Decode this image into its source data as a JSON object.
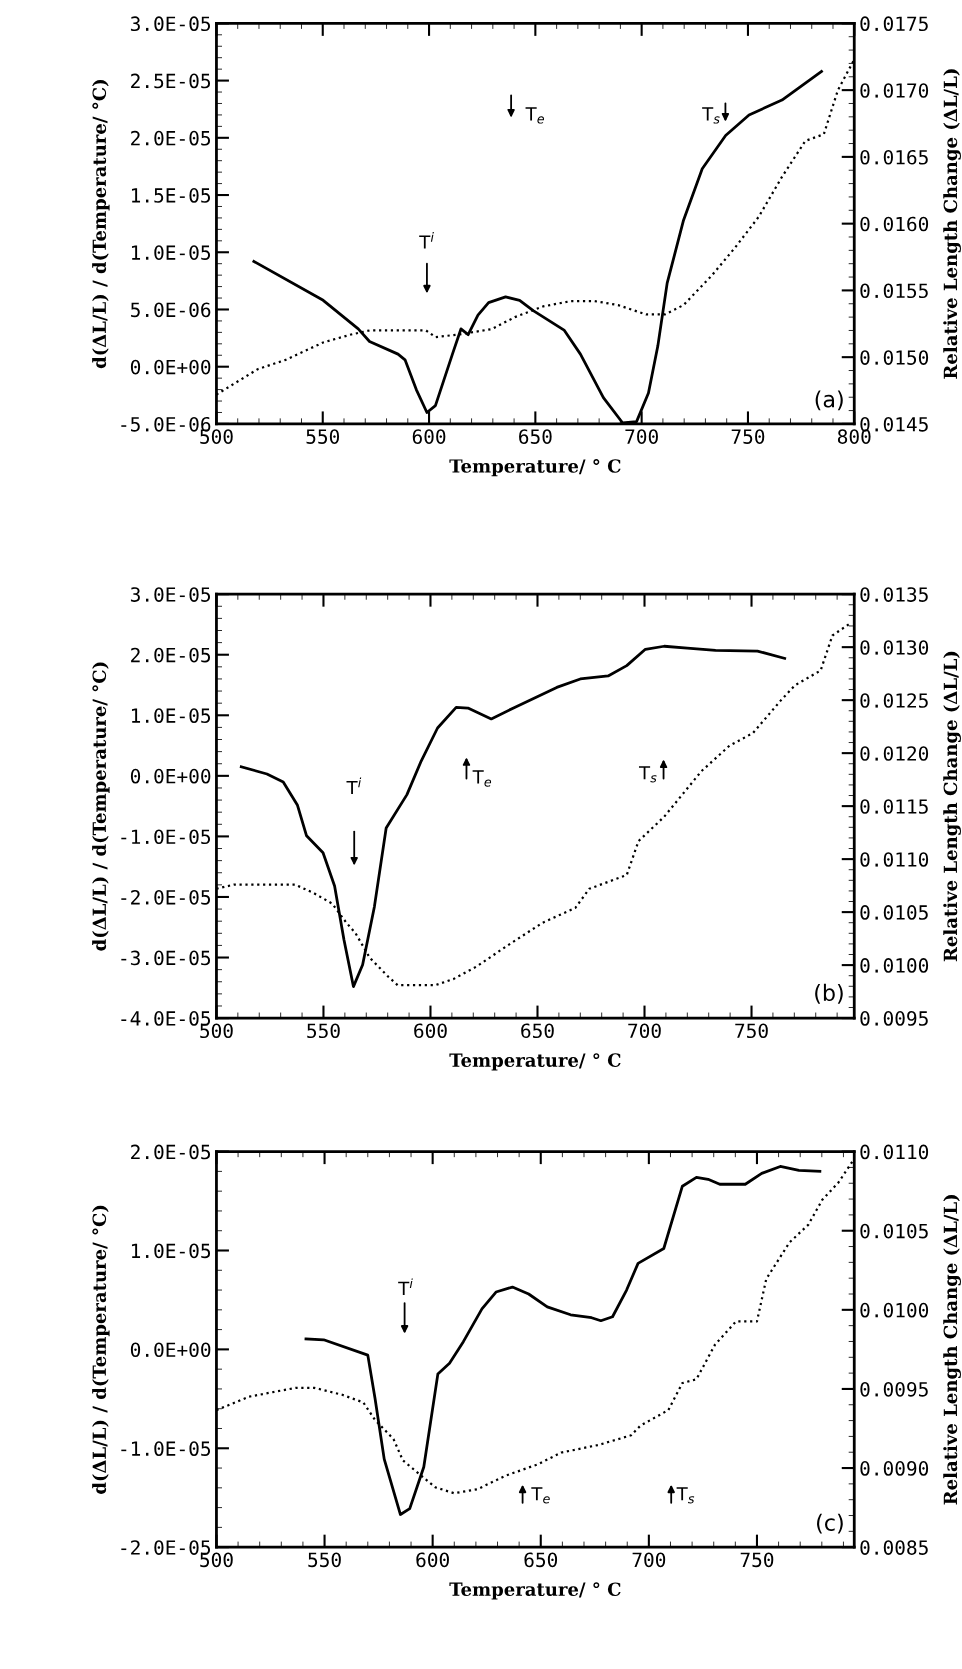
{
  "chart_data": [
    {
      "type": "line",
      "xlabel": "Temperature/ ° C",
      "ylabel": "d(ΔL/L) / d(Temperature/ °C)",
      "y2label": "Relative Length Change (ΔL/L)",
      "xlim": [
        500,
        800
      ],
      "xticks": [
        500,
        550,
        600,
        650,
        700,
        750,
        800
      ],
      "ylim": [
        -5e-06,
        3e-05
      ],
      "yticks": [
        {
          "value": -5e-06,
          "label": "-5.0E-06"
        },
        {
          "value": 0,
          "label": "0.0E+00"
        },
        {
          "value": 5e-06,
          "label": "5.0E-06"
        },
        {
          "value": 1e-05,
          "label": "1.0E-05"
        },
        {
          "value": 1.5e-05,
          "label": "1.5E-05"
        },
        {
          "value": 2e-05,
          "label": "2.0E-05"
        },
        {
          "value": 2.5e-05,
          "label": "2.5E-05"
        },
        {
          "value": 3e-05,
          "label": "3.0E-05"
        }
      ],
      "y2lim": [
        0.0145,
        0.0175
      ],
      "y2ticks": [
        {
          "value": 0.0145,
          "label": "0.0145"
        },
        {
          "value": 0.015,
          "label": "0.0150"
        },
        {
          "value": 0.0155,
          "label": "0.0155"
        },
        {
          "value": 0.016,
          "label": "0.0160"
        },
        {
          "value": 0.0165,
          "label": "0.0165"
        },
        {
          "value": 0.017,
          "label": "0.0170"
        },
        {
          "value": 0.0175,
          "label": "0.0175"
        }
      ],
      "series": [
        {
          "color": "#000000",
          "line_style": "solid",
          "x": [
            517.6,
            550.2,
            566.7,
            572,
            585.4,
            588.7,
            594,
            599,
            603,
            611,
            615,
            618.4,
            623,
            628,
            636,
            642.6,
            649,
            663.5,
            671.2,
            682,
            691,
            697.6,
            703.2,
            707.6,
            712,
            719.7,
            728.5,
            739.5,
            750.5,
            766,
            784.6
          ],
          "values": [
            9.2e-06,
            5.8e-06,
            3.3e-06,
            2.2e-06,
            1.1e-06,
            6e-07,
            -2e-06,
            -4e-06,
            -3.4e-06,
            1.1e-06,
            3.3e-06,
            2.8e-06,
            4.5e-06,
            5.6e-06,
            6.1e-06,
            5.8e-06,
            4.9e-06,
            3.2e-06,
            1.1e-06,
            -2.7e-06,
            -4.9e-06,
            -4.8e-06,
            -2.3e-06,
            1.8e-06,
            7.3e-06,
            1.28e-05,
            1.73e-05,
            2.02e-05,
            2.2e-05,
            2.33e-05,
            2.58e-05
          ]
        },
        {
          "color": "#000000",
          "line_style": "dotted",
          "axis": "y2",
          "x": [
            500,
            519.4,
            532.6,
            550.2,
            563.4,
            572,
            598.6,
            603,
            614,
            629.4,
            640.4,
            653.6,
            666.8,
            677.9,
            688.9,
            702.1,
            710.9,
            719.7,
            732.9,
            743.9,
            755,
            766,
            777,
            785.7,
            792.3,
            800
          ],
          "values": [
            0.01472,
            0.01491,
            0.01498,
            0.01511,
            0.01517,
            0.0152,
            0.0152,
            0.01515,
            0.01517,
            0.01521,
            0.0153,
            0.01538,
            0.01542,
            0.01542,
            0.01539,
            0.01532,
            0.01532,
            0.01539,
            0.01561,
            0.01582,
            0.01605,
            0.01635,
            0.01662,
            0.01667,
            0.017,
            0.01723
          ]
        }
      ],
      "annotations": [
        "T$^{i}$",
        "T$_{e}$",
        "T$_{s}$",
        "(a)"
      ]
    },
    {
      "type": "line",
      "xlabel": "Temperature/ ° C",
      "ylabel": "d(ΔL/L) / d(Temperature/ °C)",
      "y2label": "Relative Length Change (ΔL/L)",
      "xlim": [
        500,
        798
      ],
      "xticks": [
        500,
        550,
        600,
        650,
        700,
        750
      ],
      "ylim": [
        -4e-05,
        3e-05
      ],
      "yticks": [
        {
          "value": -4e-05,
          "label": "-4.0E-05"
        },
        {
          "value": -3e-05,
          "label": "-3.0E-05"
        },
        {
          "value": -2e-05,
          "label": "-2.0E-05"
        },
        {
          "value": -1e-05,
          "label": "-1.0E-05"
        },
        {
          "value": 0,
          "label": "0.0E+00"
        },
        {
          "value": 1e-05,
          "label": "1.0E-05"
        },
        {
          "value": 2e-05,
          "label": "2.0E-05"
        },
        {
          "value": 3e-05,
          "label": "3.0E-05"
        }
      ],
      "y2lim": [
        0.0095,
        0.0135
      ],
      "y2ticks": [
        {
          "value": 0.0095,
          "label": "0.0095"
        },
        {
          "value": 0.01,
          "label": "0.0100"
        },
        {
          "value": 0.0105,
          "label": "0.0105"
        },
        {
          "value": 0.011,
          "label": "0.0110"
        },
        {
          "value": 0.0115,
          "label": "0.0115"
        },
        {
          "value": 0.012,
          "label": "0.0120"
        },
        {
          "value": 0.0125,
          "label": "0.0125"
        },
        {
          "value": 0.013,
          "label": "0.0130"
        },
        {
          "value": 0.0135,
          "label": "0.0135"
        }
      ],
      "series": [
        {
          "color": "#000000",
          "line_style": "solid",
          "x": [
            511.6,
            523.6,
            531.2,
            537.8,
            542.1,
            549.8,
            555.2,
            559.6,
            564,
            568.3,
            573.8,
            579.3,
            589,
            595.6,
            603.3,
            612,
            617.5,
            628.4,
            639.3,
            659,
            670,
            683,
            691.7,
            700.4,
            709.2,
            720,
            733.2,
            752.8,
            765.5
          ],
          "values": [
            1.5e-06,
            3e-07,
            -1e-06,
            -4.8e-06,
            -9.9e-06,
            -1.27e-05,
            -1.82e-05,
            -2.71e-05,
            -3.48e-05,
            -3.12e-05,
            -2.16e-05,
            -8.6e-06,
            -3.1e-06,
            2.4e-06,
            7.9e-06,
            1.13e-05,
            1.12e-05,
            9.4e-06,
            1.13e-05,
            1.46e-05,
            1.6e-05,
            1.65e-05,
            1.82e-05,
            2.09e-05,
            2.14e-05,
            2.11e-05,
            2.07e-05,
            2.06e-05,
            1.94e-05
          ]
        },
        {
          "color": "#000000",
          "line_style": "dotted",
          "axis": "y2",
          "x": [
            500,
            508.3,
            536.7,
            545.4,
            554.1,
            560.7,
            565,
            571.6,
            580.3,
            584.7,
            602.2,
            610.9,
            621.8,
            634.9,
            652.4,
            667.7,
            674.2,
            691.7,
            697.2,
            709.2,
            726.6,
            739.7,
            750.7,
            763.8,
            770.3,
            782.3,
            787.8,
            796.5
          ],
          "values": [
            0.01072,
            0.01076,
            0.01076,
            0.01068,
            0.01058,
            0.0104,
            0.0103,
            0.01007,
            0.00989,
            0.00981,
            0.00981,
            0.00987,
            0.00999,
            0.01017,
            0.0104,
            0.01054,
            0.01072,
            0.01085,
            0.01117,
            0.0114,
            0.01183,
            0.01207,
            0.01219,
            0.0125,
            0.01264,
            0.01278,
            0.01311,
            0.01323
          ]
        }
      ],
      "annotations": [
        "T$^{i}$",
        "T$_{e}$",
        "T$_{s}$",
        "(b)"
      ]
    },
    {
      "type": "line",
      "xlabel": "Temperature/ ° C",
      "ylabel": "d(ΔL/L) / d(Temperature/ °C)",
      "y2label": "Relative Length Change (ΔL/L)",
      "xlim": [
        500,
        795
      ],
      "xticks": [
        500,
        550,
        600,
        650,
        700,
        750
      ],
      "ylim": [
        -2e-05,
        2e-05
      ],
      "yticks": [
        {
          "value": -2e-05,
          "label": "-2.0E-05"
        },
        {
          "value": -1e-05,
          "label": "-1.0E-05"
        },
        {
          "value": 0,
          "label": "0.0E+00"
        },
        {
          "value": 1e-05,
          "label": "1.0E-05"
        },
        {
          "value": 2e-05,
          "label": "2.0E-05"
        }
      ],
      "y2lim": [
        0.0085,
        0.011
      ],
      "y2ticks": [
        {
          "value": 0.0085,
          "label": "0.0085"
        },
        {
          "value": 0.009,
          "label": "0.0090"
        },
        {
          "value": 0.0095,
          "label": "0.0095"
        },
        {
          "value": 0.01,
          "label": "0.0100"
        },
        {
          "value": 0.0105,
          "label": "0.0105"
        },
        {
          "value": 0.011,
          "label": "0.0110"
        }
      ],
      "series": [
        {
          "color": "#000000",
          "line_style": "solid",
          "x": [
            541.4,
            549.6,
            570,
            573.3,
            577.6,
            585.1,
            589.4,
            595.9,
            602.4,
            607.8,
            614.2,
            622.8,
            629.3,
            636.9,
            644.4,
            653,
            663.8,
            673.5,
            677.8,
            683.2,
            689.7,
            695,
            706.9,
            715.5,
            722,
            727.4,
            732.8,
            744.6,
            752.2,
            760.8,
            769.4,
            779.1
          ],
          "values": [
            1.05e-06,
            9.7e-07,
            -5.8e-07,
            -4.9e-06,
            -1.11e-05,
            -1.67e-05,
            -1.61e-05,
            -1.19e-05,
            -2.5e-06,
            -1.4e-06,
            7.8e-07,
            4.1e-06,
            5.8e-06,
            6.3e-06,
            5.6e-06,
            4.3e-06,
            3.5e-06,
            3.2e-06,
            2.9e-06,
            3.3e-06,
            6e-06,
            8.7e-06,
            1.02e-05,
            1.65e-05,
            1.74e-05,
            1.72e-05,
            1.67e-05,
            1.67e-05,
            1.78e-05,
            1.85e-05,
            1.81e-05,
            1.8e-05
          ]
        },
        {
          "color": "#000000",
          "line_style": "dotted",
          "axis": "y2",
          "x": [
            500,
            515.1,
            536.6,
            545.3,
            558.2,
            567.9,
            573.3,
            581.9,
            586.2,
            594.8,
            601.3,
            609.9,
            620.7,
            633.6,
            648.7,
            659.5,
            676.7,
            691.8,
            696.1,
            709,
            715.5,
            722,
            730.6,
            740.3,
            750,
            754.3,
            765.1,
            773.7,
            780.2,
            787.7,
            794.2
          ],
          "values": [
            0.009366,
            0.009451,
            0.009507,
            0.009507,
            0.009463,
            0.009415,
            0.009305,
            0.009183,
            0.009049,
            0.008951,
            0.008878,
            0.008841,
            0.008866,
            0.008951,
            0.009024,
            0.009098,
            0.009146,
            0.009207,
            0.009268,
            0.009366,
            0.009537,
            0.009561,
            0.00978,
            0.009927,
            0.009927,
            0.010195,
            0.010427,
            0.010537,
            0.010695,
            0.010805,
            0.010939
          ]
        }
      ],
      "annotations": [
        "T$^{i}$",
        "T$_{e}$",
        "T$_{s}$",
        "(c)"
      ]
    }
  ]
}
